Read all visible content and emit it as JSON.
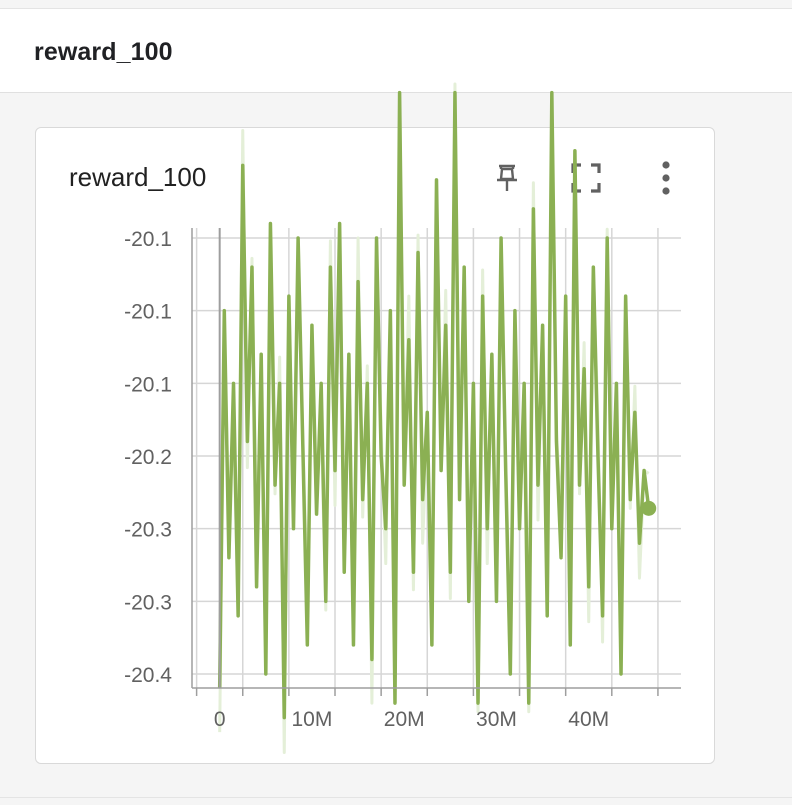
{
  "section": {
    "title": "reward_100"
  },
  "card": {
    "title": "reward_100",
    "actions": [
      {
        "name": "pin-icon",
        "label": "pin"
      },
      {
        "name": "fullscreen-icon",
        "label": "fullscreen"
      },
      {
        "name": "more-vert-icon",
        "label": "more options"
      }
    ]
  },
  "colors": {
    "line": "#8bb053",
    "line_raw": "#e4efd8",
    "grid": "#d6d6d6",
    "axis": "#9e9e9e",
    "label": "#616161"
  },
  "chart_data": {
    "type": "line",
    "title": "reward_100",
    "xlabel": "",
    "ylabel": "",
    "xlim": [
      -3000000,
      50000000
    ],
    "ylim": [
      -20.4,
      -20.1
    ],
    "x_ticks": [
      0,
      10000000,
      20000000,
      30000000,
      40000000
    ],
    "x_tick_labels": [
      "0",
      "10M",
      "20M",
      "30M",
      "40M"
    ],
    "y_tick_labels": [
      "-20.1",
      "-20.1",
      "-20.1",
      "-20.2",
      "-20.3",
      "-20.3",
      "-20.4"
    ],
    "grid": true,
    "series": [
      {
        "color": "#8bb053",
        "x": [
          0,
          500000,
          1000000,
          1500000,
          2000000,
          2500000,
          3000000,
          3500000,
          4000000,
          4500000,
          5000000,
          5500000,
          6000000,
          6500000,
          7000000,
          7500000,
          8000000,
          8500000,
          9000000,
          9500000,
          10000000,
          10500000,
          11000000,
          11500000,
          12000000,
          12500000,
          13000000,
          13500000,
          14000000,
          14500000,
          15000000,
          15500000,
          16000000,
          16500000,
          17000000,
          17500000,
          18000000,
          18500000,
          19000000,
          19500000,
          20000000,
          20500000,
          21000000,
          21500000,
          22000000,
          22500000,
          23000000,
          23500000,
          24000000,
          24500000,
          25000000,
          25500000,
          26000000,
          26500000,
          27000000,
          27500000,
          28000000,
          28500000,
          29000000,
          29500000,
          30000000,
          30500000,
          31000000,
          31500000,
          32000000,
          32500000,
          33000000,
          33500000,
          34000000,
          34500000,
          35000000,
          35500000,
          36000000,
          36500000,
          37000000,
          37500000,
          38000000,
          38500000,
          39000000,
          39500000,
          40000000,
          40500000,
          41000000,
          41500000,
          42000000,
          42500000,
          43000000,
          43500000,
          44000000,
          44500000,
          45000000,
          45500000,
          46000000,
          46500000
        ],
        "values": [
          -20.41,
          -20.15,
          -20.32,
          -20.2,
          -20.36,
          -20.05,
          -20.24,
          -20.12,
          -20.34,
          -20.18,
          -20.4,
          -20.09,
          -20.27,
          -20.2,
          -20.43,
          -20.14,
          -20.3,
          -20.1,
          -20.24,
          -20.38,
          -20.16,
          -20.29,
          -20.2,
          -20.35,
          -20.12,
          -20.26,
          -20.09,
          -20.33,
          -20.18,
          -20.38,
          -20.13,
          -20.28,
          -20.2,
          -20.39,
          -20.1,
          -20.25,
          -20.3,
          -20.15,
          -20.42,
          -20.0,
          -20.27,
          -20.17,
          -20.33,
          -20.11,
          -20.28,
          -20.22,
          -20.38,
          -20.06,
          -20.26,
          -20.16,
          -20.33,
          -20.0,
          -20.28,
          -20.12,
          -20.35,
          -20.2,
          -20.42,
          -20.14,
          -20.3,
          -20.18,
          -20.35,
          -20.1,
          -20.26,
          -20.4,
          -20.15,
          -20.3,
          -20.2,
          -20.42,
          -20.08,
          -20.27,
          -20.16,
          -20.36,
          -20.0,
          -20.24,
          -20.32,
          -20.14,
          -20.38,
          -20.04,
          -20.27,
          -20.19,
          -20.34,
          -20.12,
          -20.25,
          -20.36,
          -20.1,
          -20.3,
          -20.2,
          -20.4,
          -20.14,
          -20.28,
          -20.22,
          -20.31,
          -20.26,
          -20.286
        ]
      }
    ]
  }
}
